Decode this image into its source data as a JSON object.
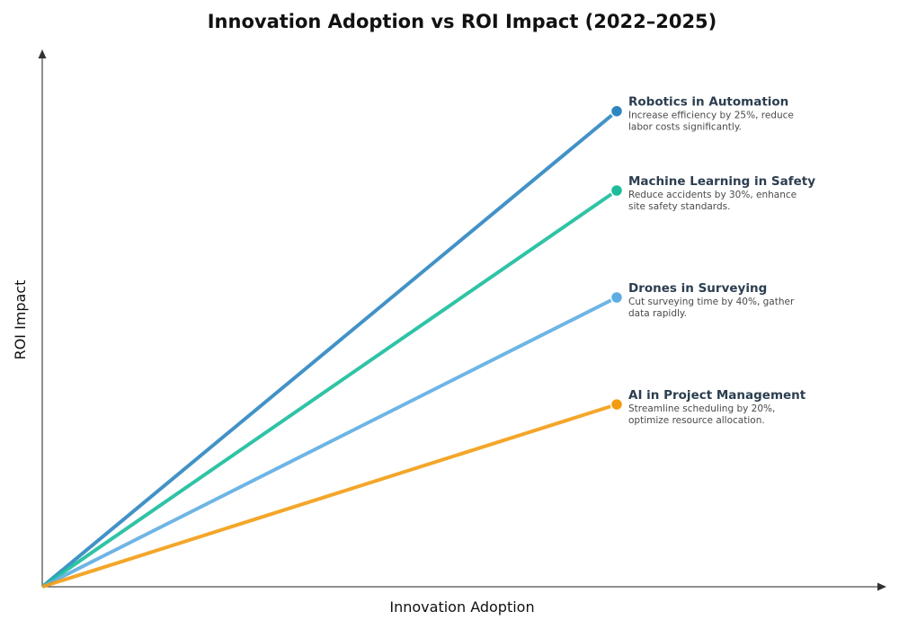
{
  "chart_data": {
    "type": "line",
    "title": "Innovation Adoption vs ROI Impact (2022–2025)",
    "xlabel": "Innovation Adoption",
    "ylabel": "ROI Impact",
    "xlim": [
      0,
      1.46
    ],
    "ylim": [
      0,
      1.34
    ],
    "grid": false,
    "series": [
      {
        "name": "Robotics in Automation",
        "color": "#2e86c1",
        "x": [
          0,
          1
        ],
        "y": [
          0,
          1.2
        ],
        "description_lines": [
          "Increase efficiency by 25%, reduce",
          "labor costs significantly."
        ]
      },
      {
        "name": "Machine Learning in Safety",
        "color": "#1abc9c",
        "x": [
          0,
          1
        ],
        "y": [
          0,
          1.0
        ],
        "description_lines": [
          "Reduce accidents by 30%, enhance",
          "site safety standards."
        ]
      },
      {
        "name": "Drones in Surveying",
        "color": "#5dade2",
        "x": [
          0,
          1
        ],
        "y": [
          0,
          0.73
        ],
        "description_lines": [
          "Cut surveying time by 40%, gather",
          "data rapidly."
        ]
      },
      {
        "name": "AI in Project Management",
        "color": "#f39c12",
        "x": [
          0,
          1
        ],
        "y": [
          0,
          0.46
        ],
        "description_lines": [
          "Streamline scheduling by 20%,",
          "optimize resource allocation."
        ]
      }
    ]
  }
}
